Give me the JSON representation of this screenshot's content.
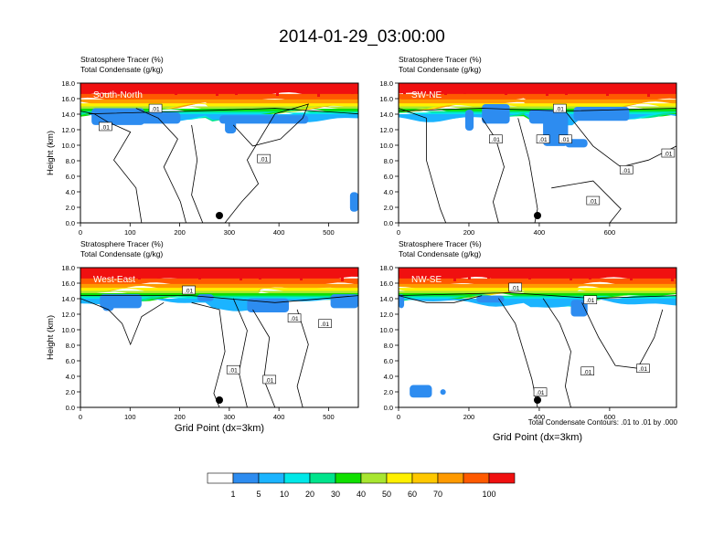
{
  "figure": {
    "title": "2014-01-29_03:00:00",
    "contour_note": "Total Condensate Contours: .01 to .01 by .000",
    "xlabel": "Grid Point (dx=3km)"
  },
  "chart_data": [
    {
      "type": "heatmap",
      "panel_label": "South-North",
      "header_left": [
        "Stratosphere Tracer",
        "Total Condensate"
      ],
      "header_units": [
        "(%)",
        "(g/kg)"
      ],
      "ylabel": "Height (km)",
      "xlim": [
        0,
        560
      ],
      "ylim": [
        0,
        18
      ],
      "xticks": [
        0,
        100,
        200,
        300,
        400,
        500
      ],
      "yticks": [
        "0.0",
        "2.0",
        "4.0",
        "6.0",
        "8.0",
        "10.0",
        "12.0",
        "14.0",
        "16.0",
        "18.0"
      ],
      "terrain_marker_x": 280,
      "contour_labels": [
        ".01",
        ".01",
        ".01"
      ]
    },
    {
      "type": "heatmap",
      "panel_label": "SW-NE",
      "header_left": [
        "Stratosphere Tracer",
        "Total Condensate"
      ],
      "header_units": [
        "(%)",
        "(g/kg)"
      ],
      "ylabel": "",
      "xlim": [
        0,
        790
      ],
      "ylim": [
        0,
        18
      ],
      "xticks": [
        0,
        200,
        400,
        600
      ],
      "yticks": [
        "0.0",
        "2.0",
        "4.0",
        "6.0",
        "8.0",
        "10.0",
        "12.0",
        "14.0",
        "16.0",
        "18.0"
      ],
      "terrain_marker_x": 395,
      "contour_labels": [
        ".01",
        ".01",
        ".01",
        ".01",
        ".01",
        ".01",
        ".01"
      ]
    },
    {
      "type": "heatmap",
      "panel_label": "West-East",
      "header_left": [
        "Stratosphere Tracer",
        "Total Condensate"
      ],
      "header_units": [
        "(%)",
        "(g/kg)"
      ],
      "ylabel": "Height (km)",
      "xlim": [
        0,
        560
      ],
      "ylim": [
        0,
        18
      ],
      "xticks": [
        0,
        100,
        200,
        300,
        400,
        500
      ],
      "yticks": [
        "0.0",
        "2.0",
        "4.0",
        "6.0",
        "8.0",
        "10.0",
        "12.0",
        "14.0",
        "16.0",
        "18.0"
      ],
      "terrain_marker_x": 280,
      "contour_labels": [
        ".01",
        ".01",
        ".01",
        ".01",
        ".01"
      ]
    },
    {
      "type": "heatmap",
      "panel_label": "NW-SE",
      "header_left": [
        "Stratosphere Tracer",
        "Total Condensate"
      ],
      "header_units": [
        "(%)",
        "(g/kg)"
      ],
      "ylabel": "",
      "xlim": [
        0,
        790
      ],
      "ylim": [
        0,
        18
      ],
      "xticks": [
        0,
        200,
        400,
        600
      ],
      "yticks": [
        "0.0",
        "2.0",
        "4.0",
        "6.0",
        "8.0",
        "10.0",
        "12.0",
        "14.0",
        "16.0",
        "18.0"
      ],
      "terrain_marker_x": 395,
      "contour_labels": [
        ".01",
        ".01",
        ".01",
        ".01",
        ".01"
      ]
    }
  ],
  "colorbar": {
    "colors": [
      "#ffffff",
      "#2d8cf0",
      "#1bb4ff",
      "#00e8e8",
      "#00e48c",
      "#10e000",
      "#a8e630",
      "#fff000",
      "#ffc800",
      "#ff9a00",
      "#ff5a00",
      "#f01010"
    ],
    "labels": [
      "1",
      "5",
      "10",
      "20",
      "30",
      "40",
      "50",
      "60",
      "70",
      "100"
    ]
  }
}
